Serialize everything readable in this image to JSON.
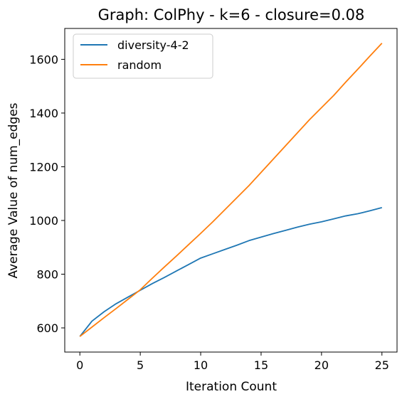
{
  "chart_data": {
    "type": "line",
    "title": "Graph: ColPhy - k=6 - closure=0.08",
    "xlabel": "Iteration Count",
    "ylabel": "Average Value of num_edges",
    "xlim": [
      -1.25,
      26.25
    ],
    "ylim": [
      510,
      1715
    ],
    "xticks": [
      0,
      5,
      10,
      15,
      20,
      25
    ],
    "yticks": [
      600,
      800,
      1000,
      1200,
      1400,
      1600
    ],
    "grid": false,
    "legend_position": "top-left",
    "x": [
      0,
      1,
      2,
      3,
      4,
      5,
      6,
      7,
      8,
      9,
      10,
      11,
      12,
      13,
      14,
      15,
      16,
      17,
      18,
      19,
      20,
      21,
      22,
      23,
      24,
      25
    ],
    "series": [
      {
        "name": "diversity-4-2",
        "color": "#1f77b4",
        "values": [
          568,
          625,
          660,
          690,
          715,
          740,
          765,
          788,
          812,
          836,
          860,
          876,
          892,
          908,
          925,
          938,
          951,
          963,
          975,
          986,
          995,
          1006,
          1017,
          1025,
          1036,
          1048
        ]
      },
      {
        "name": "random",
        "color": "#ff7f0e",
        "values": [
          568,
          603,
          638,
          672,
          707,
          742,
          785,
          827,
          868,
          910,
          952,
          995,
          1040,
          1085,
          1130,
          1179,
          1228,
          1277,
          1326,
          1375,
          1420,
          1465,
          1515,
          1563,
          1612,
          1660
        ]
      }
    ]
  }
}
